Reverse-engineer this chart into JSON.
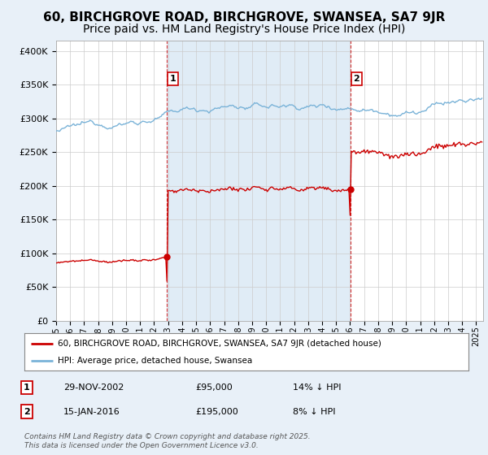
{
  "title": "60, BIRCHGROVE ROAD, BIRCHGROVE, SWANSEA, SA7 9JR",
  "subtitle": "Price paid vs. HM Land Registry's House Price Index (HPI)",
  "ylabel_ticks": [
    "£0",
    "£50K",
    "£100K",
    "£150K",
    "£200K",
    "£250K",
    "£300K",
    "£350K",
    "£400K"
  ],
  "ytick_values": [
    0,
    50000,
    100000,
    150000,
    200000,
    250000,
    300000,
    350000,
    400000
  ],
  "ylim": [
    0,
    415000
  ],
  "xlim_start": 1995.0,
  "xlim_end": 2025.5,
  "hpi_color": "#7ab3d8",
  "price_color": "#cc0000",
  "vline_color": "#cc0000",
  "shade_color": "#cce0f0",
  "sale1_year": 2002.91,
  "sale1_price": 95000,
  "sale1_label": "1",
  "sale2_year": 2016.04,
  "sale2_price": 195000,
  "sale2_label": "2",
  "legend_line1": "60, BIRCHGROVE ROAD, BIRCHGROVE, SWANSEA, SA7 9JR (detached house)",
  "legend_line2": "HPI: Average price, detached house, Swansea",
  "table_row1": [
    "1",
    "29-NOV-2002",
    "£95,000",
    "14% ↓ HPI"
  ],
  "table_row2": [
    "2",
    "15-JAN-2016",
    "£195,000",
    "8% ↓ HPI"
  ],
  "footer": "Contains HM Land Registry data © Crown copyright and database right 2025.\nThis data is licensed under the Open Government Licence v3.0.",
  "bg_color": "#e8f0f8",
  "plot_bg": "#ffffff",
  "title_fontsize": 11,
  "subtitle_fontsize": 10
}
